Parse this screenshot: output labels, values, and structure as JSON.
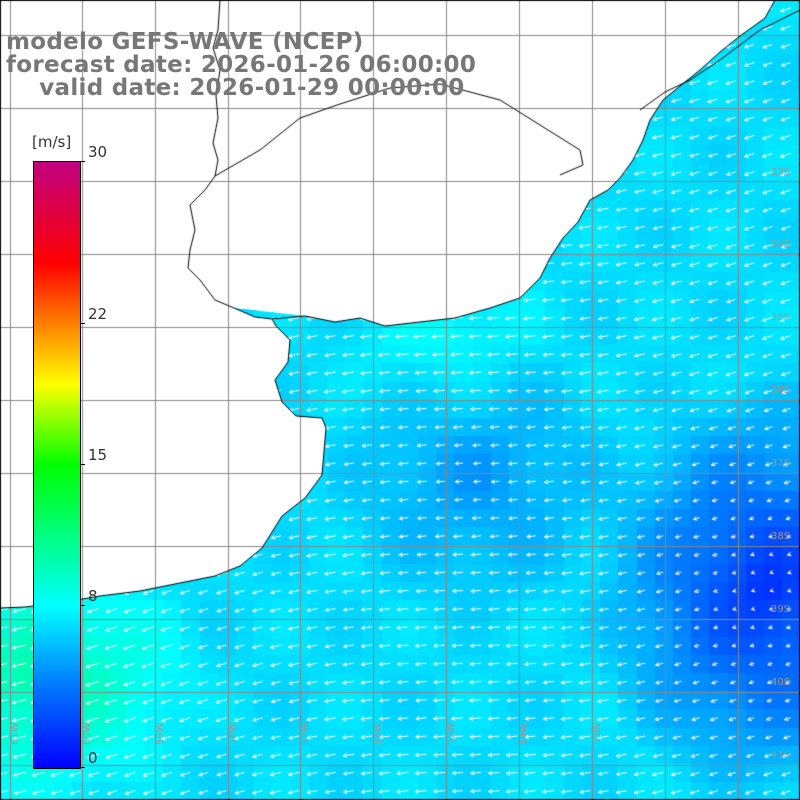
{
  "title": {
    "line1": "modelo GEFS-WAVE (NCEP)",
    "line2": "forecast date: 2026-01-26 06:00:00",
    "line3": "    valid date: 2026-01-29 00:00:00"
  },
  "colorbar": {
    "unit": "[m/s]",
    "ticks": [
      {
        "value": 30,
        "label": "30"
      },
      {
        "value": 22,
        "label": "22"
      },
      {
        "value": 15,
        "label": "15"
      },
      {
        "value": 8,
        "label": "8"
      },
      {
        "value": 0,
        "label": "0"
      }
    ],
    "range": [
      0,
      30
    ],
    "colors": [
      "#0000ff",
      "#0077ff",
      "#00ffff",
      "#00ff00",
      "#ffff00",
      "#ff8000",
      "#ff0000",
      "#c00080"
    ]
  },
  "map": {
    "field": "wind speed",
    "land_color": "#ffffff",
    "grid": true,
    "lat_labels": [
      "33S",
      "34S",
      "35S",
      "36S",
      "37S",
      "38S",
      "39S",
      "40S",
      "41S"
    ],
    "lon_labels": [
      "61W",
      "60W",
      "59W",
      "58W",
      "57W",
      "56W",
      "55W",
      "54W",
      "53W"
    ]
  }
}
